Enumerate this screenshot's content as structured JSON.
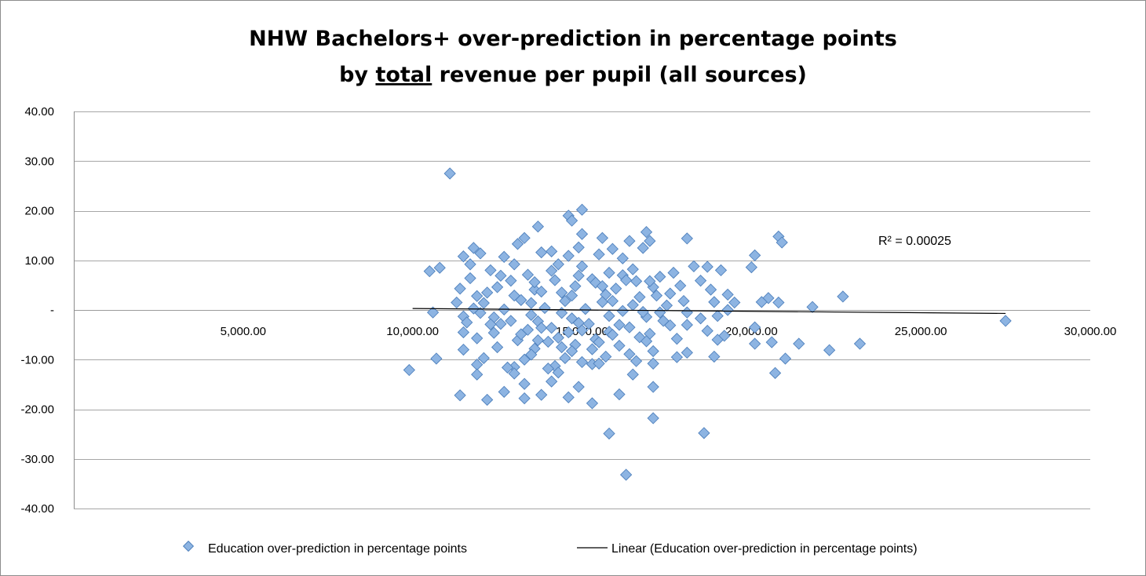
{
  "chart_data": {
    "type": "scatter",
    "title_lines": [
      "NHW Bachelors+ over-prediction in percentage points",
      [
        "by ",
        "total",
        " revenue per pupil (all sources)"
      ]
    ],
    "xlabel": "",
    "ylabel": "",
    "xlim": [
      0,
      30000
    ],
    "ylim": [
      -40,
      40
    ],
    "x_ticks": [
      5000,
      10000,
      15000,
      20000,
      25000,
      30000
    ],
    "x_tick_labels": [
      "5,000.00",
      "10,000.00",
      "15,000.00",
      "20,000.00",
      "25,000.00",
      "30,000.00"
    ],
    "y_ticks": [
      40,
      30,
      20,
      10,
      0,
      -10,
      -20,
      -30,
      -40
    ],
    "y_tick_labels": [
      "40.00",
      "30.00",
      "20.00",
      "10.00",
      "-",
      "-10.00",
      "-20.00",
      "-30.00",
      "-40.00"
    ],
    "grid": "horizontal",
    "legend_position": "bottom",
    "marker_color": "#8db4e2",
    "marker_edge_color": "#4f81bd",
    "trend_color": "#000000",
    "series": [
      {
        "name": "Education over-prediction in percentage points",
        "points": [
          [
            11100,
            27.5
          ],
          [
            15000,
            20.2
          ],
          [
            14600,
            19.0
          ],
          [
            14700,
            18.0
          ],
          [
            13700,
            16.8
          ],
          [
            16900,
            15.7
          ],
          [
            20800,
            14.8
          ],
          [
            15000,
            15.3
          ],
          [
            13300,
            14.5
          ],
          [
            15600,
            14.5
          ],
          [
            18100,
            14.4
          ],
          [
            17000,
            13.9
          ],
          [
            16400,
            13.9
          ],
          [
            13100,
            13.3
          ],
          [
            15900,
            12.3
          ],
          [
            20900,
            13.6
          ],
          [
            11800,
            12.5
          ],
          [
            14900,
            12.6
          ],
          [
            12000,
            11.4
          ],
          [
            14100,
            11.8
          ],
          [
            16800,
            12.5
          ],
          [
            13800,
            11.6
          ],
          [
            15500,
            11.2
          ],
          [
            11500,
            10.8
          ],
          [
            12700,
            10.7
          ],
          [
            14600,
            10.9
          ],
          [
            16200,
            10.4
          ],
          [
            20100,
            11.0
          ],
          [
            17700,
            7.5
          ],
          [
            18300,
            8.8
          ],
          [
            18700,
            8.7
          ],
          [
            19100,
            8.0
          ],
          [
            20000,
            8.6
          ],
          [
            16500,
            8.2
          ],
          [
            10800,
            8.5
          ],
          [
            10500,
            7.8
          ],
          [
            12300,
            8.0
          ],
          [
            13400,
            7.1
          ],
          [
            15800,
            7.5
          ],
          [
            17300,
            6.7
          ],
          [
            18500,
            5.9
          ],
          [
            11700,
            6.4
          ],
          [
            12900,
            5.9
          ],
          [
            14200,
            6.0
          ],
          [
            15300,
            6.2
          ],
          [
            16600,
            5.8
          ],
          [
            17900,
            4.9
          ],
          [
            11400,
            4.3
          ],
          [
            12500,
            4.6
          ],
          [
            13600,
            4.1
          ],
          [
            14800,
            4.8
          ],
          [
            16000,
            4.3
          ],
          [
            17100,
            4.6
          ],
          [
            18800,
            4.1
          ],
          [
            11900,
            2.8
          ],
          [
            13000,
            2.9
          ],
          [
            14400,
            3.5
          ],
          [
            15700,
            3.1
          ],
          [
            16700,
            2.6
          ],
          [
            17600,
            3.3
          ],
          [
            19300,
            3.1
          ],
          [
            20500,
            2.4
          ],
          [
            22700,
            2.7
          ],
          [
            11300,
            1.5
          ],
          [
            12100,
            1.4
          ],
          [
            13200,
            2.0
          ],
          [
            14500,
            1.8
          ],
          [
            15600,
            1.6
          ],
          [
            16500,
            1.0
          ],
          [
            17500,
            0.9
          ],
          [
            18900,
            1.6
          ],
          [
            19500,
            1.5
          ],
          [
            20300,
            1.6
          ],
          [
            20800,
            1.5
          ],
          [
            21800,
            0.6
          ],
          [
            11800,
            0.3
          ],
          [
            12700,
            0.1
          ],
          [
            13900,
            0.4
          ],
          [
            15100,
            0.2
          ],
          [
            16200,
            -0.2
          ],
          [
            17300,
            -0.5
          ],
          [
            18100,
            -0.5
          ],
          [
            19300,
            0.0
          ],
          [
            10600,
            -0.5
          ],
          [
            11500,
            -1.3
          ],
          [
            12400,
            -1.5
          ],
          [
            13500,
            -1.0
          ],
          [
            14700,
            -1.7
          ],
          [
            15800,
            -1.2
          ],
          [
            16900,
            -1.4
          ],
          [
            18500,
            -1.7
          ],
          [
            19000,
            -1.2
          ],
          [
            11600,
            -2.5
          ],
          [
            12600,
            -2.8
          ],
          [
            13700,
            -2.3
          ],
          [
            14900,
            -2.6
          ],
          [
            16100,
            -3.0
          ],
          [
            17400,
            -2.2
          ],
          [
            18100,
            -3.0
          ],
          [
            20100,
            -3.5
          ],
          [
            27500,
            -2.2
          ],
          [
            11500,
            -4.5
          ],
          [
            12400,
            -4.6
          ],
          [
            13400,
            -4.0
          ],
          [
            14600,
            -4.5
          ],
          [
            15800,
            -4.4
          ],
          [
            17000,
            -4.8
          ],
          [
            18700,
            -4.2
          ],
          [
            19200,
            -5.2
          ],
          [
            11900,
            -5.7
          ],
          [
            13100,
            -6.1
          ],
          [
            14300,
            -5.6
          ],
          [
            15400,
            -5.9
          ],
          [
            16700,
            -5.5
          ],
          [
            17800,
            -5.8
          ],
          [
            19000,
            -6.0
          ],
          [
            21400,
            -6.8
          ],
          [
            20100,
            -6.8
          ],
          [
            20600,
            -6.5
          ],
          [
            23200,
            -6.8
          ],
          [
            11500,
            -8.0
          ],
          [
            12500,
            -7.5
          ],
          [
            13600,
            -7.8
          ],
          [
            14800,
            -7.0
          ],
          [
            16100,
            -7.2
          ],
          [
            17100,
            -8.3
          ],
          [
            18100,
            -8.6
          ],
          [
            22300,
            -8.1
          ],
          [
            12100,
            -9.7
          ],
          [
            13300,
            -10.0
          ],
          [
            14500,
            -9.7
          ],
          [
            15700,
            -9.4
          ],
          [
            16600,
            -10.3
          ],
          [
            17800,
            -9.5
          ],
          [
            18900,
            -9.4
          ],
          [
            21000,
            -9.8
          ],
          [
            10700,
            -9.8
          ],
          [
            9900,
            -12.1
          ],
          [
            11900,
            -11.0
          ],
          [
            13000,
            -11.5
          ],
          [
            14200,
            -11.3
          ],
          [
            15300,
            -10.9
          ],
          [
            17100,
            -10.8
          ],
          [
            12800,
            -11.6
          ],
          [
            11900,
            -13.0
          ],
          [
            13000,
            -12.8
          ],
          [
            14300,
            -12.6
          ],
          [
            16500,
            -13.0
          ],
          [
            20700,
            -12.7
          ],
          [
            13300,
            -14.9
          ],
          [
            14100,
            -14.4
          ],
          [
            14900,
            -15.5
          ],
          [
            17100,
            -15.5
          ],
          [
            11400,
            -17.2
          ],
          [
            12700,
            -16.5
          ],
          [
            13800,
            -17.1
          ],
          [
            14600,
            -17.6
          ],
          [
            16100,
            -17.0
          ],
          [
            12200,
            -18.1
          ],
          [
            13300,
            -17.8
          ],
          [
            15300,
            -18.8
          ],
          [
            17100,
            -21.8
          ],
          [
            15800,
            -24.9
          ],
          [
            18600,
            -24.8
          ],
          [
            16300,
            -33.2
          ],
          [
            12900,
            -2.2
          ],
          [
            13800,
            -3.6
          ],
          [
            14400,
            -0.6
          ],
          [
            15200,
            -2.8
          ],
          [
            16400,
            -3.5
          ],
          [
            13000,
            9.2
          ],
          [
            14100,
            7.9
          ],
          [
            15000,
            8.8
          ],
          [
            16200,
            7.0
          ],
          [
            17000,
            5.8
          ],
          [
            12200,
            3.5
          ],
          [
            13500,
            1.4
          ],
          [
            14700,
            2.9
          ],
          [
            15900,
            1.8
          ],
          [
            16800,
            -0.4
          ],
          [
            12000,
            -0.6
          ],
          [
            13200,
            -4.9
          ],
          [
            14000,
            -6.4
          ],
          [
            14700,
            -8.3
          ],
          [
            15500,
            -6.5
          ],
          [
            16400,
            -8.9
          ],
          [
            13500,
            -9.0
          ],
          [
            14000,
            -11.8
          ],
          [
            15000,
            -10.5
          ],
          [
            15500,
            -10.8
          ],
          [
            12600,
            6.9
          ],
          [
            14300,
            9.2
          ],
          [
            15400,
            5.5
          ],
          [
            16300,
            6.0
          ],
          [
            17200,
            2.9
          ],
          [
            18000,
            1.8
          ],
          [
            13600,
            5.6
          ],
          [
            14900,
            6.9
          ],
          [
            15600,
            4.8
          ],
          [
            12300,
            -2.9
          ],
          [
            14100,
            -3.6
          ],
          [
            15000,
            -4.1
          ],
          [
            15900,
            -5.0
          ],
          [
            16900,
            -6.3
          ],
          [
            17600,
            -3.1
          ],
          [
            13700,
            -6.1
          ],
          [
            14400,
            -7.5
          ],
          [
            15300,
            -7.9
          ],
          [
            11700,
            9.2
          ],
          [
            13800,
            3.7
          ]
        ]
      }
    ],
    "trendline": {
      "name": "Linear (Education over-prediction in percentage points)",
      "x_range": [
        10000,
        27500
      ],
      "y_range": [
        0.3,
        -0.7
      ],
      "r2_label": "R² = 0.00025",
      "r2_anchor": [
        24400,
        14
      ]
    }
  }
}
